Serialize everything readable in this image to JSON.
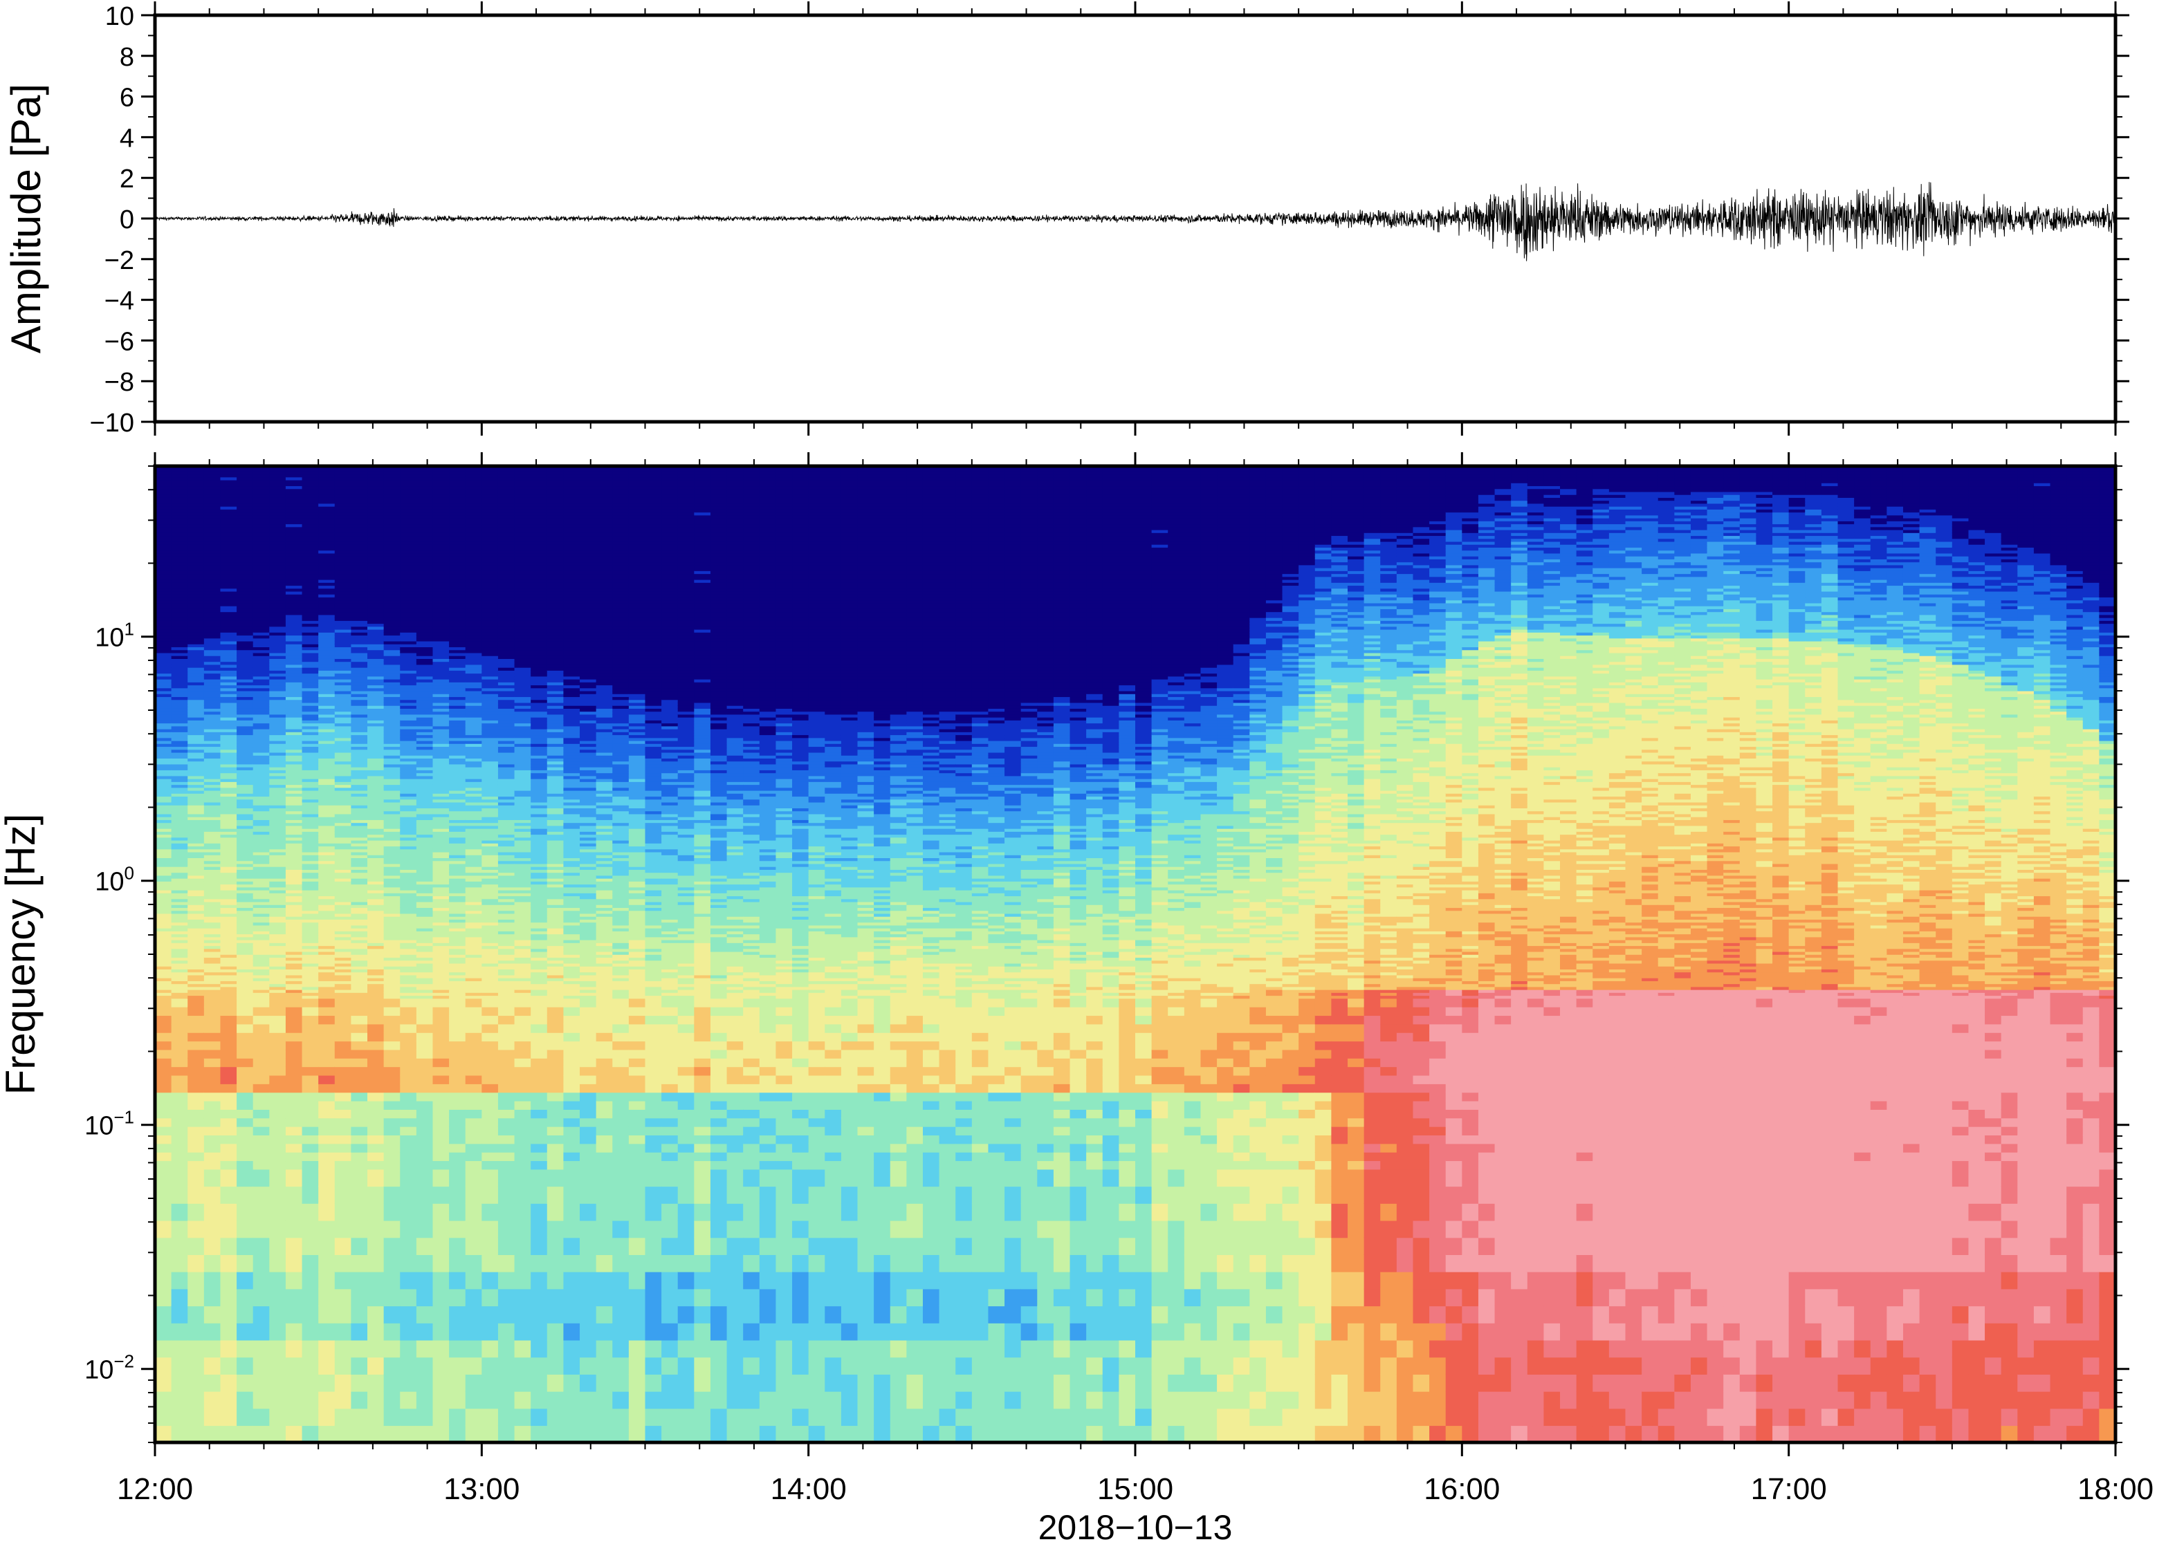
{
  "chart_data": [
    {
      "type": "line",
      "panel": "waveform",
      "ylabel": "Amplitude [Pa]",
      "ylim": [
        -10,
        10
      ],
      "yticks": [
        10,
        8,
        6,
        4,
        2,
        0,
        -2,
        -4,
        -6,
        -8,
        -10
      ],
      "ytick_labels": [
        "10",
        "8",
        "6",
        "4",
        "2",
        "0",
        "−2",
        "−4",
        "−6",
        "−8",
        "−10"
      ],
      "xlim": [
        "12:00",
        "18:00"
      ],
      "grid": false,
      "color": "#000000",
      "envelope": {
        "time_hours": [
          12.0,
          12.5,
          12.73,
          12.75,
          13.0,
          13.5,
          14.0,
          14.5,
          15.0,
          15.3,
          15.6,
          15.9,
          16.05,
          16.15,
          16.3,
          16.5,
          16.7,
          16.9,
          17.1,
          17.4,
          17.6,
          17.8,
          18.0
        ],
        "amplitude_pa": [
          0.1,
          0.15,
          0.6,
          0.15,
          0.15,
          0.15,
          0.15,
          0.18,
          0.2,
          0.3,
          0.45,
          0.6,
          1.0,
          2.8,
          2.0,
          1.0,
          0.9,
          1.8,
          1.6,
          1.9,
          1.2,
          0.8,
          0.7
        ]
      }
    },
    {
      "type": "heatmap",
      "panel": "spectrogram",
      "ylabel": "Frequency [Hz]",
      "xlabel": "2018−10−13",
      "yscale": "log",
      "ylim_hz": [
        0.005,
        50
      ],
      "yticks": [
        {
          "value": 10,
          "base": "10",
          "exp": "1"
        },
        {
          "value": 1,
          "base": "10",
          "exp": "0"
        },
        {
          "value": 0.1,
          "base": "10",
          "exp": "−1"
        },
        {
          "value": 0.01,
          "base": "10",
          "exp": "−2"
        }
      ],
      "xticks": [
        "12:00",
        "13:00",
        "14:00",
        "15:00",
        "16:00",
        "17:00",
        "18:00"
      ],
      "colormap": [
        "#0b0080",
        "#1030c8",
        "#1d6ae6",
        "#3aa0f0",
        "#5cd0ec",
        "#8ee8c2",
        "#c8f2a4",
        "#f2ee96",
        "#f8c86e",
        "#f79850",
        "#ef6050",
        "#f07880",
        "#f6a0a8"
      ],
      "upper_edge_hz": {
        "time_hours": [
          12.0,
          12.5,
          13.0,
          13.5,
          14.0,
          14.5,
          15.0,
          15.3,
          15.6,
          15.9,
          16.15,
          16.5,
          16.9,
          17.3,
          17.6,
          18.0
        ],
        "frequency_hz": [
          6,
          9,
          6,
          4,
          3.5,
          3.5,
          4.5,
          5.5,
          18,
          20,
          30,
          28,
          28,
          26,
          20,
          10
        ]
      },
      "low_freq_intensity": {
        "time_hours": [
          12.0,
          12.5,
          13.0,
          13.5,
          14.0,
          14.5,
          15.0,
          15.3,
          15.6,
          15.8,
          16.0,
          16.2,
          16.5,
          16.9,
          17.3,
          17.7,
          18.0
        ],
        "level": [
          0.62,
          0.6,
          0.55,
          0.52,
          0.5,
          0.52,
          0.55,
          0.62,
          0.7,
          0.8,
          0.9,
          1.0,
          0.95,
          0.98,
          0.97,
          0.93,
          0.9
        ]
      }
    }
  ]
}
